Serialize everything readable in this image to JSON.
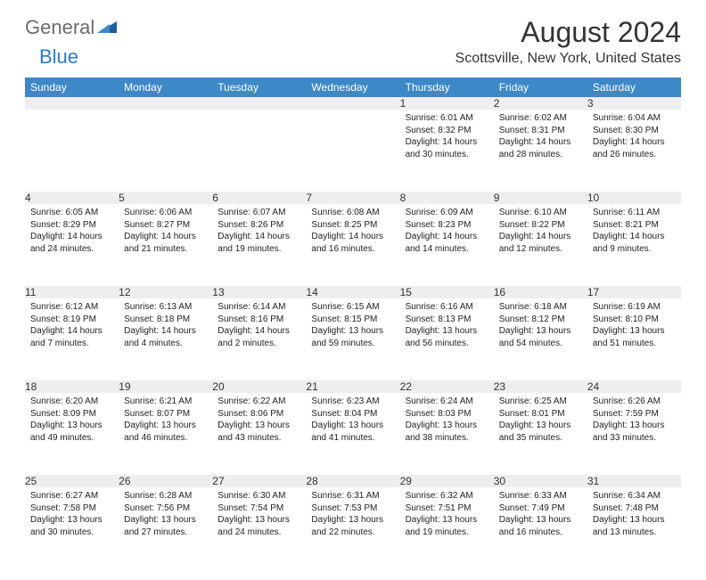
{
  "logo": {
    "text1": "General",
    "text2": "Blue"
  },
  "title": "August 2024",
  "location": "Scottsville, New York, United States",
  "colors": {
    "header_bg": "#3d88c7",
    "header_text": "#ffffff",
    "daynum_bg": "#eeeeee",
    "border_top": "#3d88c7",
    "logo_gray": "#6b6b6b",
    "logo_blue": "#2f7bbf"
  },
  "weekdays": [
    "Sunday",
    "Monday",
    "Tuesday",
    "Wednesday",
    "Thursday",
    "Friday",
    "Saturday"
  ],
  "weeks": [
    [
      null,
      null,
      null,
      null,
      {
        "n": "1",
        "sr": "Sunrise: 6:01 AM",
        "ss": "Sunset: 8:32 PM",
        "d1": "Daylight: 14 hours",
        "d2": "and 30 minutes."
      },
      {
        "n": "2",
        "sr": "Sunrise: 6:02 AM",
        "ss": "Sunset: 8:31 PM",
        "d1": "Daylight: 14 hours",
        "d2": "and 28 minutes."
      },
      {
        "n": "3",
        "sr": "Sunrise: 6:04 AM",
        "ss": "Sunset: 8:30 PM",
        "d1": "Daylight: 14 hours",
        "d2": "and 26 minutes."
      }
    ],
    [
      {
        "n": "4",
        "sr": "Sunrise: 6:05 AM",
        "ss": "Sunset: 8:29 PM",
        "d1": "Daylight: 14 hours",
        "d2": "and 24 minutes."
      },
      {
        "n": "5",
        "sr": "Sunrise: 6:06 AM",
        "ss": "Sunset: 8:27 PM",
        "d1": "Daylight: 14 hours",
        "d2": "and 21 minutes."
      },
      {
        "n": "6",
        "sr": "Sunrise: 6:07 AM",
        "ss": "Sunset: 8:26 PM",
        "d1": "Daylight: 14 hours",
        "d2": "and 19 minutes."
      },
      {
        "n": "7",
        "sr": "Sunrise: 6:08 AM",
        "ss": "Sunset: 8:25 PM",
        "d1": "Daylight: 14 hours",
        "d2": "and 16 minutes."
      },
      {
        "n": "8",
        "sr": "Sunrise: 6:09 AM",
        "ss": "Sunset: 8:23 PM",
        "d1": "Daylight: 14 hours",
        "d2": "and 14 minutes."
      },
      {
        "n": "9",
        "sr": "Sunrise: 6:10 AM",
        "ss": "Sunset: 8:22 PM",
        "d1": "Daylight: 14 hours",
        "d2": "and 12 minutes."
      },
      {
        "n": "10",
        "sr": "Sunrise: 6:11 AM",
        "ss": "Sunset: 8:21 PM",
        "d1": "Daylight: 14 hours",
        "d2": "and 9 minutes."
      }
    ],
    [
      {
        "n": "11",
        "sr": "Sunrise: 6:12 AM",
        "ss": "Sunset: 8:19 PM",
        "d1": "Daylight: 14 hours",
        "d2": "and 7 minutes."
      },
      {
        "n": "12",
        "sr": "Sunrise: 6:13 AM",
        "ss": "Sunset: 8:18 PM",
        "d1": "Daylight: 14 hours",
        "d2": "and 4 minutes."
      },
      {
        "n": "13",
        "sr": "Sunrise: 6:14 AM",
        "ss": "Sunset: 8:16 PM",
        "d1": "Daylight: 14 hours",
        "d2": "and 2 minutes."
      },
      {
        "n": "14",
        "sr": "Sunrise: 6:15 AM",
        "ss": "Sunset: 8:15 PM",
        "d1": "Daylight: 13 hours",
        "d2": "and 59 minutes."
      },
      {
        "n": "15",
        "sr": "Sunrise: 6:16 AM",
        "ss": "Sunset: 8:13 PM",
        "d1": "Daylight: 13 hours",
        "d2": "and 56 minutes."
      },
      {
        "n": "16",
        "sr": "Sunrise: 6:18 AM",
        "ss": "Sunset: 8:12 PM",
        "d1": "Daylight: 13 hours",
        "d2": "and 54 minutes."
      },
      {
        "n": "17",
        "sr": "Sunrise: 6:19 AM",
        "ss": "Sunset: 8:10 PM",
        "d1": "Daylight: 13 hours",
        "d2": "and 51 minutes."
      }
    ],
    [
      {
        "n": "18",
        "sr": "Sunrise: 6:20 AM",
        "ss": "Sunset: 8:09 PM",
        "d1": "Daylight: 13 hours",
        "d2": "and 49 minutes."
      },
      {
        "n": "19",
        "sr": "Sunrise: 6:21 AM",
        "ss": "Sunset: 8:07 PM",
        "d1": "Daylight: 13 hours",
        "d2": "and 46 minutes."
      },
      {
        "n": "20",
        "sr": "Sunrise: 6:22 AM",
        "ss": "Sunset: 8:06 PM",
        "d1": "Daylight: 13 hours",
        "d2": "and 43 minutes."
      },
      {
        "n": "21",
        "sr": "Sunrise: 6:23 AM",
        "ss": "Sunset: 8:04 PM",
        "d1": "Daylight: 13 hours",
        "d2": "and 41 minutes."
      },
      {
        "n": "22",
        "sr": "Sunrise: 6:24 AM",
        "ss": "Sunset: 8:03 PM",
        "d1": "Daylight: 13 hours",
        "d2": "and 38 minutes."
      },
      {
        "n": "23",
        "sr": "Sunrise: 6:25 AM",
        "ss": "Sunset: 8:01 PM",
        "d1": "Daylight: 13 hours",
        "d2": "and 35 minutes."
      },
      {
        "n": "24",
        "sr": "Sunrise: 6:26 AM",
        "ss": "Sunset: 7:59 PM",
        "d1": "Daylight: 13 hours",
        "d2": "and 33 minutes."
      }
    ],
    [
      {
        "n": "25",
        "sr": "Sunrise: 6:27 AM",
        "ss": "Sunset: 7:58 PM",
        "d1": "Daylight: 13 hours",
        "d2": "and 30 minutes."
      },
      {
        "n": "26",
        "sr": "Sunrise: 6:28 AM",
        "ss": "Sunset: 7:56 PM",
        "d1": "Daylight: 13 hours",
        "d2": "and 27 minutes."
      },
      {
        "n": "27",
        "sr": "Sunrise: 6:30 AM",
        "ss": "Sunset: 7:54 PM",
        "d1": "Daylight: 13 hours",
        "d2": "and 24 minutes."
      },
      {
        "n": "28",
        "sr": "Sunrise: 6:31 AM",
        "ss": "Sunset: 7:53 PM",
        "d1": "Daylight: 13 hours",
        "d2": "and 22 minutes."
      },
      {
        "n": "29",
        "sr": "Sunrise: 6:32 AM",
        "ss": "Sunset: 7:51 PM",
        "d1": "Daylight: 13 hours",
        "d2": "and 19 minutes."
      },
      {
        "n": "30",
        "sr": "Sunrise: 6:33 AM",
        "ss": "Sunset: 7:49 PM",
        "d1": "Daylight: 13 hours",
        "d2": "and 16 minutes."
      },
      {
        "n": "31",
        "sr": "Sunrise: 6:34 AM",
        "ss": "Sunset: 7:48 PM",
        "d1": "Daylight: 13 hours",
        "d2": "and 13 minutes."
      }
    ]
  ]
}
